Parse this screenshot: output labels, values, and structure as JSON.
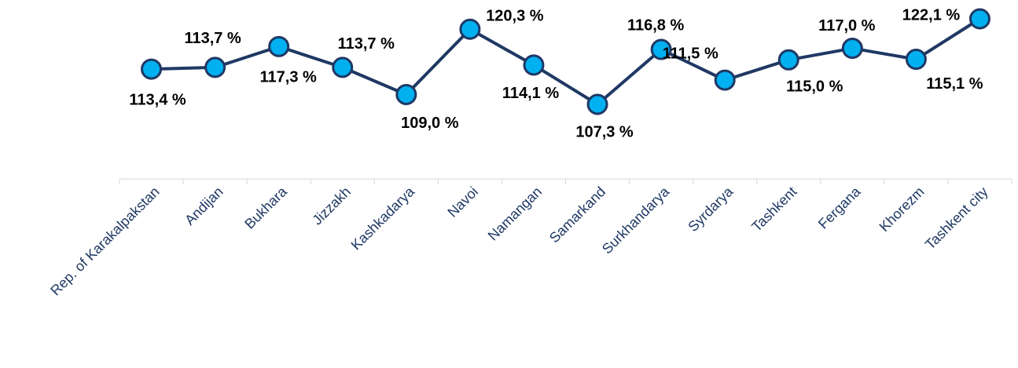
{
  "chart_data": {
    "type": "line",
    "categories": [
      "Rep. of Karakalpakstan",
      "Andijan",
      "Bukhara",
      "Jizzakh",
      "Kashkadarya",
      "Navoi",
      "Namangan",
      "Samarkand",
      "Surkhandarya",
      "Syrdarya",
      "Tashkent",
      "Fergana",
      "Khorezm",
      "Tashkent city"
    ],
    "values": [
      113.4,
      113.7,
      117.3,
      113.7,
      109.0,
      120.3,
      114.1,
      107.3,
      116.8,
      111.5,
      115.0,
      117.0,
      115.1,
      122.1
    ],
    "value_labels": [
      "113,4 %",
      "113,7 %",
      "117,3 %",
      "113,7 %",
      "109,0 %",
      "120,3 %",
      "114,1 %",
      "107,3 %",
      "116,8 %",
      "111,5 %",
      "115,0 %",
      "117,0 %",
      "115,1 %",
      "122,1 %"
    ],
    "color": "#00b0f0",
    "line_color": "#1f3864"
  }
}
